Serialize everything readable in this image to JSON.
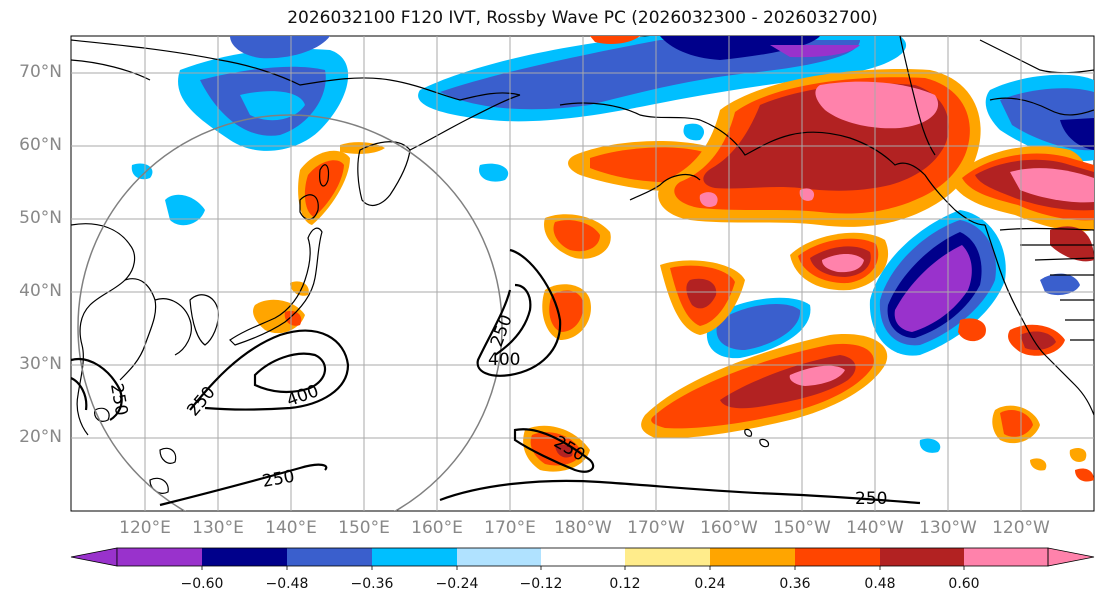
{
  "title": "2026032100 F120 IVT, Rossby Wave PC (2026032300 - 2026032700)",
  "latitude_labels": [
    "70°N",
    "60°N",
    "50°N",
    "40°N",
    "30°N",
    "20°N"
  ],
  "longitude_labels": [
    "120°E",
    "130°E",
    "140°E",
    "150°E",
    "160°E",
    "170°E",
    "180°W",
    "170°W",
    "160°W",
    "150°W",
    "140°W",
    "130°W",
    "120°W"
  ],
  "contour_labels": [
    "250",
    "250",
    "400",
    "250",
    "400",
    "250",
    "250",
    "250"
  ],
  "colorbar": {
    "tick_labels": [
      "−0.60",
      "−0.48",
      "−0.36",
      "−0.24",
      "−0.12",
      "0.12",
      "0.24",
      "0.36",
      "0.48",
      "0.60"
    ],
    "colors": [
      "#9932CC",
      "#00008B",
      "#3A5FCD",
      "#00BFFF",
      "#B0E2FF",
      "#FFFFFF",
      "#FFEC8B",
      "#FFA500",
      "#FF4500",
      "#B22222",
      "#FF82AB"
    ]
  },
  "colors": {
    "grid": "#aaaaaa",
    "coast": "#000000",
    "ivt_contour": "#000000",
    "rossby_circle": "#808080"
  }
}
